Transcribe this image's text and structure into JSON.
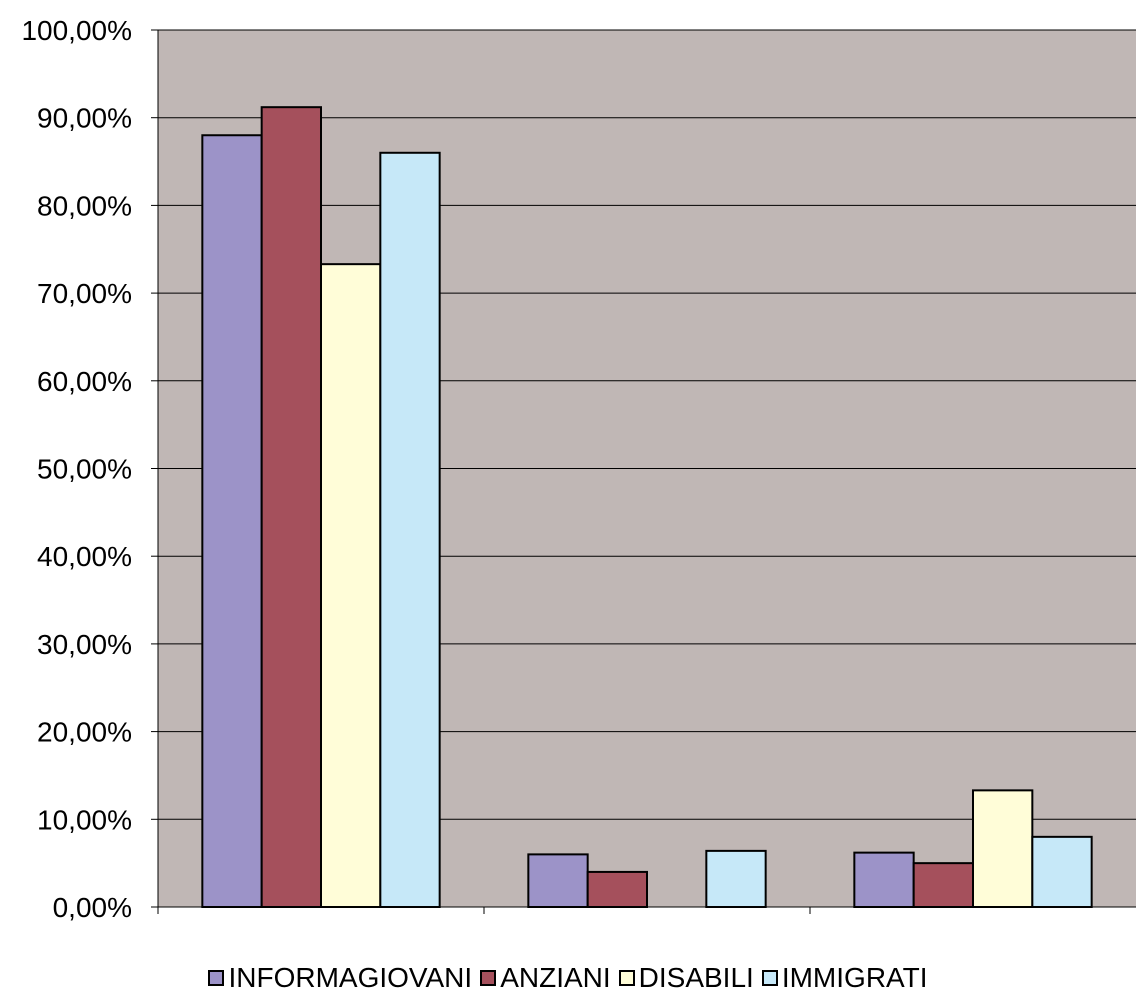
{
  "chart_data": {
    "type": "bar",
    "categories": [
      "",
      "",
      ""
    ],
    "series": [
      {
        "name": "INFORMAGIOVANI",
        "color": "#9C93C8",
        "values": [
          0.88,
          0.06,
          0.062
        ]
      },
      {
        "name": "ANZIANI",
        "color": "#A5505C",
        "values": [
          0.912,
          0.04,
          0.05
        ]
      },
      {
        "name": "DISABILI",
        "color": "#FFFDD8",
        "values": [
          0.733,
          0.0,
          0.133
        ]
      },
      {
        "name": "IMMIGRATI",
        "color": "#C6E8F8",
        "values": [
          0.86,
          0.064,
          0.08
        ]
      }
    ],
    "ylim": [
      0,
      1
    ],
    "yticks": [
      "0,00%",
      "10,00%",
      "20,00%",
      "30,00%",
      "40,00%",
      "50,00%",
      "60,00%",
      "70,00%",
      "80,00%",
      "90,00%",
      "100,00%"
    ],
    "plot_background": "#C0B7B5",
    "grid": true,
    "legend_position": "bottom",
    "title": "",
    "xlabel": "",
    "ylabel": ""
  }
}
